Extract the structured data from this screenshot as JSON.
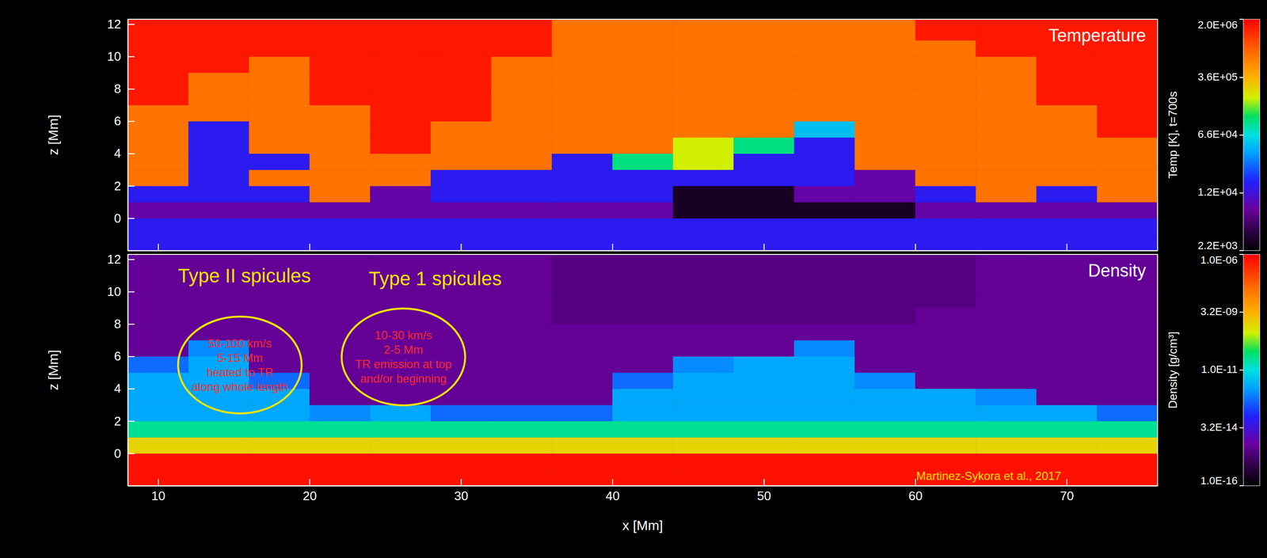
{
  "chart_data": [
    {
      "type": "heatmap",
      "title": "Temperature",
      "ylabel": "z [Mm]",
      "tick_labels": "y",
      "xlim": [
        8,
        76
      ],
      "ylim": [
        -2,
        12.3
      ],
      "xticks": [
        10,
        20,
        30,
        40,
        50,
        60,
        70
      ],
      "yticks": [
        0,
        2,
        4,
        6,
        8,
        10,
        12
      ],
      "x_edges": [
        8,
        12,
        16,
        20,
        24,
        28,
        32,
        36,
        40,
        44,
        48,
        52,
        56,
        60,
        64,
        68,
        72,
        76
      ],
      "y_edges": [
        -2,
        -1,
        0,
        1,
        2,
        3,
        4,
        5,
        6,
        7,
        8,
        9,
        10,
        11,
        12.3
      ],
      "values": [
        [
          15000,
          15000,
          8000,
          15000,
          700000,
          700000,
          700000,
          700000,
          700000,
          1600000,
          1600000,
          1600000,
          1600000,
          1600000
        ],
        [
          15000,
          15000,
          8000,
          15000,
          15000,
          15000,
          15000,
          15000,
          700000,
          700000,
          700000,
          1600000,
          1600000,
          1600000
        ],
        [
          15000,
          15000,
          8000,
          15000,
          700000,
          15000,
          700000,
          700000,
          700000,
          700000,
          700000,
          700000,
          1600000,
          1600000
        ],
        [
          15000,
          15000,
          8000,
          700000,
          700000,
          700000,
          700000,
          700000,
          700000,
          1600000,
          1600000,
          1600000,
          1600000,
          1600000
        ],
        [
          15000,
          15000,
          8000,
          8000,
          700000,
          700000,
          1600000,
          1600000,
          1600000,
          1600000,
          1600000,
          1600000,
          1600000,
          1600000
        ],
        [
          15000,
          15000,
          8000,
          15000,
          15000,
          700000,
          700000,
          700000,
          1600000,
          1600000,
          1600000,
          1600000,
          1600000,
          1600000
        ],
        [
          15000,
          15000,
          8000,
          15000,
          15000,
          700000,
          700000,
          700000,
          700000,
          700000,
          700000,
          700000,
          1600000,
          1600000
        ],
        [
          15000,
          15000,
          8000,
          15000,
          15000,
          15000,
          700000,
          700000,
          700000,
          700000,
          700000,
          700000,
          700000,
          700000
        ],
        [
          15000,
          15000,
          8000,
          15000,
          15000,
          100000,
          700000,
          700000,
          700000,
          700000,
          700000,
          700000,
          700000,
          700000
        ],
        [
          15000,
          15000,
          3000,
          3000,
          15000,
          200000,
          200000,
          700000,
          700000,
          700000,
          700000,
          700000,
          700000,
          700000
        ],
        [
          15000,
          15000,
          3000,
          3000,
          15000,
          15000,
          100000,
          700000,
          700000,
          700000,
          700000,
          700000,
          700000,
          700000
        ],
        [
          15000,
          15000,
          3000,
          8000,
          15000,
          15000,
          15000,
          50000,
          700000,
          700000,
          700000,
          700000,
          700000,
          700000
        ],
        [
          15000,
          15000,
          3000,
          8000,
          8000,
          700000,
          700000,
          700000,
          700000,
          700000,
          700000,
          700000,
          700000,
          700000
        ],
        [
          15000,
          15000,
          8000,
          15000,
          700000,
          700000,
          700000,
          700000,
          700000,
          700000,
          700000,
          700000,
          700000,
          1600000
        ],
        [
          15000,
          15000,
          8000,
          700000,
          700000,
          700000,
          700000,
          700000,
          700000,
          700000,
          700000,
          700000,
          1600000,
          1600000
        ],
        [
          15000,
          15000,
          8000,
          15000,
          700000,
          700000,
          700000,
          700000,
          700000,
          1600000,
          1600000,
          1600000,
          1600000,
          1600000
        ],
        [
          15000,
          15000,
          8000,
          700000,
          700000,
          700000,
          700000,
          1600000,
          1600000,
          1600000,
          1600000,
          1600000,
          1600000,
          1600000
        ]
      ],
      "colorbar": {
        "label": "Temp [K], t=700s",
        "range": [
          2200,
          2000000
        ],
        "ticks": [
          {
            "value": 2000000,
            "label": "2.0E+06"
          },
          {
            "value": 360000,
            "label": "3.6E+05"
          },
          {
            "value": 66000,
            "label": "6.6E+04"
          },
          {
            "value": 12000,
            "label": "1.2E+04"
          },
          {
            "value": 2200,
            "label": "2.2E+03"
          }
        ]
      }
    },
    {
      "type": "heatmap",
      "title": "Density",
      "xlabel": "x [Mm]",
      "ylabel": "z [Mm]",
      "xlim": [
        8,
        76
      ],
      "ylim": [
        -2,
        12.3
      ],
      "xticks": [
        10,
        20,
        30,
        40,
        50,
        60,
        70
      ],
      "yticks": [
        0,
        2,
        4,
        6,
        8,
        10,
        12
      ],
      "x_edges": [
        8,
        12,
        16,
        20,
        24,
        28,
        32,
        36,
        40,
        44,
        48,
        52,
        56,
        60,
        64,
        68,
        72,
        76
      ],
      "y_edges": [
        -2,
        -1,
        0,
        1,
        2,
        3,
        4,
        5,
        6,
        7,
        8,
        9,
        10,
        11,
        12.3
      ],
      "values": [
        [
          6e-07,
          6e-07,
          1e-09,
          3e-11,
          2e-12,
          2e-12,
          2e-12,
          5e-13,
          5e-15,
          5e-15,
          5e-15,
          5e-15,
          5e-15,
          5e-15
        ],
        [
          6e-07,
          6e-07,
          1e-09,
          3e-11,
          2e-12,
          2e-12,
          2e-12,
          2e-12,
          1e-12,
          5e-15,
          5e-15,
          5e-15,
          5e-15,
          5e-15
        ],
        [
          6e-07,
          6e-07,
          1e-09,
          3e-11,
          2e-12,
          2e-12,
          5e-13,
          5e-15,
          5e-15,
          5e-15,
          5e-15,
          5e-15,
          5e-15,
          5e-15
        ],
        [
          6e-07,
          6e-07,
          1e-09,
          3e-11,
          1e-12,
          5e-15,
          5e-15,
          5e-15,
          5e-15,
          5e-15,
          5e-15,
          5e-15,
          5e-15,
          5e-15
        ],
        [
          6e-07,
          6e-07,
          1e-09,
          3e-11,
          2e-12,
          5e-15,
          5e-15,
          5e-15,
          5e-15,
          5e-15,
          5e-15,
          5e-15,
          5e-15,
          5e-15
        ],
        [
          6e-07,
          6e-07,
          1e-09,
          3e-11,
          5e-13,
          5e-15,
          5e-15,
          5e-15,
          5e-15,
          5e-15,
          5e-15,
          5e-15,
          5e-15,
          5e-15
        ],
        [
          6e-07,
          6e-07,
          1e-09,
          3e-11,
          5e-13,
          5e-15,
          5e-15,
          5e-15,
          5e-15,
          5e-15,
          5e-15,
          5e-15,
          5e-15,
          5e-15
        ],
        [
          6e-07,
          6e-07,
          1e-09,
          3e-11,
          5e-13,
          5e-15,
          5e-15,
          5e-15,
          5e-15,
          5e-15,
          3e-15,
          3e-15,
          3e-15,
          3e-15
        ],
        [
          6e-07,
          6e-07,
          1e-09,
          3e-11,
          2e-12,
          2e-12,
          5e-13,
          5e-15,
          5e-15,
          5e-15,
          3e-15,
          3e-15,
          3e-15,
          3e-15
        ],
        [
          6e-07,
          6e-07,
          1e-09,
          3e-11,
          2e-12,
          2e-12,
          2e-12,
          1e-12,
          5e-15,
          5e-15,
          3e-15,
          3e-15,
          3e-15,
          3e-15
        ],
        [
          6e-07,
          6e-07,
          1e-09,
          3e-11,
          2e-12,
          2e-12,
          2e-12,
          2e-12,
          5e-15,
          5e-15,
          3e-15,
          3e-15,
          3e-15,
          3e-15
        ],
        [
          6e-07,
          6e-07,
          1e-09,
          3e-11,
          2e-12,
          2e-12,
          2e-12,
          2e-12,
          1e-12,
          5e-15,
          3e-15,
          3e-15,
          3e-15,
          3e-15
        ],
        [
          6e-07,
          6e-07,
          1e-09,
          3e-11,
          2e-12,
          2e-12,
          1e-12,
          5e-15,
          5e-15,
          5e-15,
          3e-15,
          3e-15,
          3e-15,
          3e-15
        ],
        [
          6e-07,
          6e-07,
          1e-09,
          3e-11,
          2e-12,
          2e-12,
          5e-15,
          5e-15,
          5e-15,
          5e-15,
          5e-15,
          3e-15,
          3e-15,
          3e-15
        ],
        [
          6e-07,
          6e-07,
          1e-09,
          3e-11,
          2e-12,
          1e-12,
          5e-15,
          5e-15,
          5e-15,
          5e-15,
          5e-15,
          5e-15,
          5e-15,
          5e-15
        ],
        [
          6e-07,
          6e-07,
          1e-09,
          3e-11,
          2e-12,
          5e-15,
          5e-15,
          5e-15,
          5e-15,
          5e-15,
          5e-15,
          5e-15,
          5e-15,
          5e-15
        ],
        [
          6e-07,
          6e-07,
          1e-09,
          3e-11,
          5e-13,
          5e-15,
          5e-15,
          5e-15,
          5e-15,
          5e-15,
          5e-15,
          5e-15,
          5e-15,
          5e-15
        ]
      ],
      "colorbar": {
        "label": "Density [g/cm³]",
        "range": [
          1e-16,
          1e-06
        ],
        "ticks": [
          {
            "value": 1e-06,
            "label": "1.0E-06"
          },
          {
            "value": 3.2e-09,
            "label": "3.2E-09"
          },
          {
            "value": 1e-11,
            "label": "1.0E-11"
          },
          {
            "value": 3.2e-14,
            "label": "3.2E-14"
          },
          {
            "value": 1e-16,
            "label": "1.0E-16"
          }
        ]
      },
      "annotations": [
        {
          "label": "Type II spicules",
          "x": 15.7,
          "y": 10.9,
          "notes": [
            "50-100 km/s",
            "5-15 Mm",
            "heated to TR",
            "along whole length"
          ],
          "note_x": 15.4,
          "note_y": 5.4
        },
        {
          "label": "Type 1 spicules",
          "x": 28.3,
          "y": 10.7,
          "notes": [
            "10-30 km/s",
            "2-5 Mm",
            "TR emission at top",
            "and/or beginning"
          ],
          "note_x": 26.2,
          "note_y": 5.9
        }
      ],
      "credit": "Martinez-Sykora et al., 2017"
    }
  ]
}
